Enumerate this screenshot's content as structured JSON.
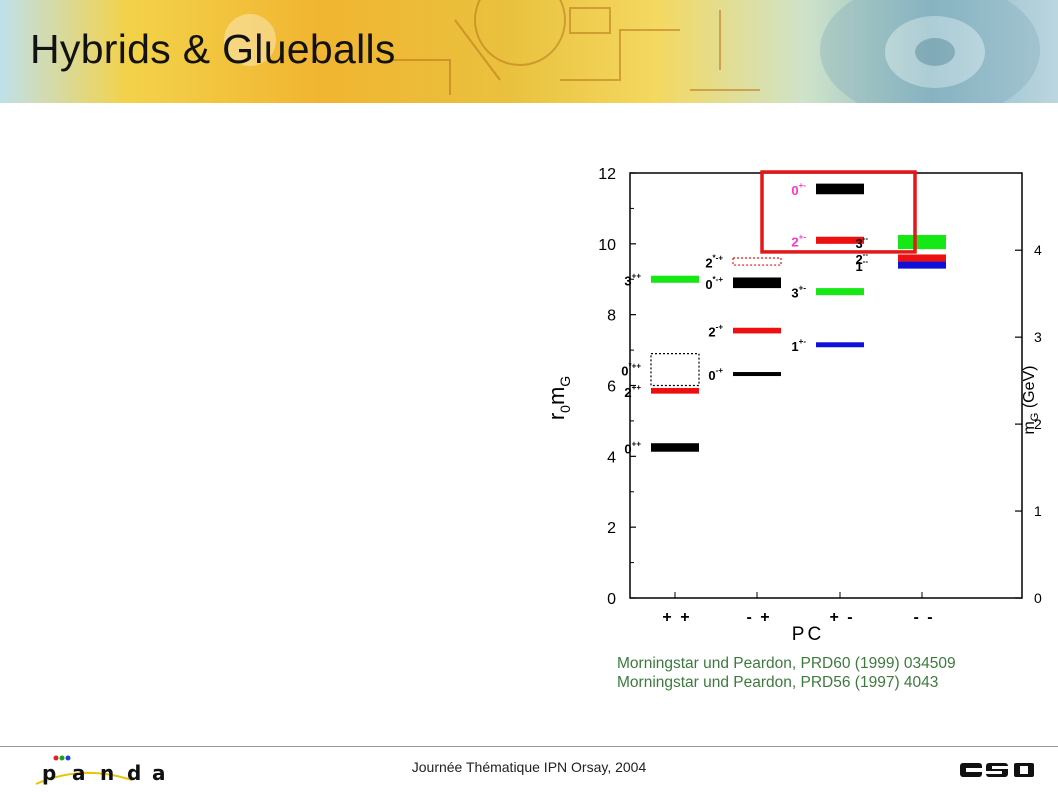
{
  "slide": {
    "title": "Hybrids & Glueballs",
    "footer": "Journée Thématique IPN Orsay, 2004",
    "references": [
      "Morningstar und Peardon, PRD60 (1999) 034509",
      "Morningstar und Peardon, PRD56 (1997) 4043"
    ]
  },
  "logos": {
    "left": "panda-logo",
    "right": "gsi-logo"
  },
  "colors": {
    "green": "#15e815",
    "red": "#ee1010",
    "black": "#000000",
    "blue": "#1010d8",
    "highlight": "#e31818",
    "magenta": "#ff33cc",
    "reference": "#3d7a3d"
  },
  "chart_data": {
    "type": "bar",
    "ylabel_main": "r",
    "ylabel_sub1": "0",
    "ylabel_main2": "m",
    "ylabel_sub2": "G",
    "ylabel_right": "m",
    "ylabel_right_sub": "G",
    "ylabel_right_unit": " (GeV)",
    "xlabel": "PC",
    "ylim": [
      0,
      12
    ],
    "yticks_left": [
      "0",
      "2",
      "4",
      "6",
      "8",
      "10",
      "12"
    ],
    "yticks_right": [
      "0",
      "1",
      "2",
      "3",
      "4"
    ],
    "right_axis_scale": 2.455,
    "categories": [
      "+ +",
      "- +",
      "+ -",
      "- -"
    ],
    "levels": [
      {
        "category": 0,
        "label": "0",
        "sup": "++",
        "value": 4.25,
        "error": 0.12,
        "color": "black",
        "slot": 0
      },
      {
        "category": 0,
        "label": "2",
        "sup": "++",
        "value": 5.85,
        "error": 0.08,
        "color": "red",
        "slot": 0
      },
      {
        "category": 0,
        "label": "0",
        "sup": "*++",
        "value": 6.45,
        "error": 0.45,
        "color": "dotted-black",
        "slot": 0
      },
      {
        "category": 0,
        "label": "3",
        "sup": "++",
        "value": 9.0,
        "error": 0.1,
        "color": "green",
        "slot": 0
      },
      {
        "category": 1,
        "label": "0",
        "sup": "-+",
        "value": 6.33,
        "error": 0.05,
        "color": "black",
        "slot": 1
      },
      {
        "category": 1,
        "label": "2",
        "sup": "-+",
        "value": 7.55,
        "error": 0.08,
        "color": "red",
        "slot": 1
      },
      {
        "category": 1,
        "label": "0",
        "sup": "*-+",
        "value": 8.9,
        "error": 0.15,
        "color": "black",
        "slot": 1
      },
      {
        "category": 1,
        "label": "2",
        "sup": "*-+",
        "value": 9.5,
        "error": 0.1,
        "color": "dotted-red",
        "slot": 1
      },
      {
        "category": 2,
        "label": "1",
        "sup": "+-",
        "value": 7.15,
        "error": 0.07,
        "color": "blue",
        "slot": 2
      },
      {
        "category": 2,
        "label": "3",
        "sup": "+-",
        "value": 8.65,
        "error": 0.1,
        "color": "green",
        "slot": 2
      },
      {
        "category": 2,
        "label": "2",
        "sup": "+-",
        "value": 10.1,
        "error": 0.1,
        "color": "red",
        "slot": 2
      },
      {
        "category": 2,
        "label": "0",
        "sup": "+-",
        "value": 11.55,
        "error": 0.15,
        "color": "black",
        "slot": 2
      },
      {
        "category": 3,
        "label": "1",
        "sup": "--",
        "value": 9.4,
        "error": 0.1,
        "color": "blue",
        "slot": 3
      },
      {
        "category": 3,
        "label": "2",
        "sup": "--",
        "value": 9.6,
        "error": 0.1,
        "color": "red",
        "slot": 3
      },
      {
        "category": 3,
        "label": "3",
        "sup": "--",
        "value": 10.05,
        "error": 0.2,
        "color": "green",
        "slot": 3
      }
    ],
    "highlight": {
      "category": 2,
      "range": [
        9.8,
        12.0
      ]
    }
  }
}
